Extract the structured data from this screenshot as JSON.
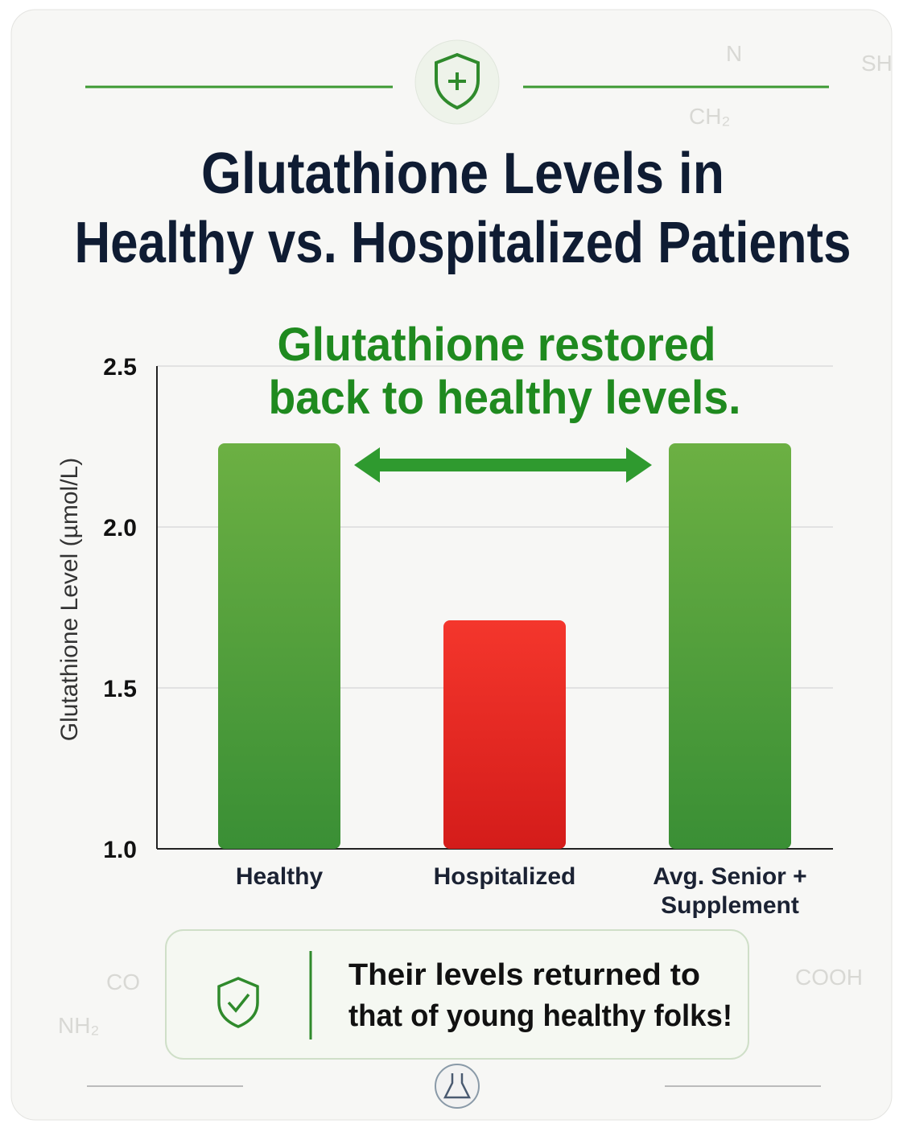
{
  "chart_data": {
    "type": "bar",
    "title": [
      "Glutathione Levels in",
      "Healthy vs. Hospitalized Patients"
    ],
    "annotation": [
      "Glutathione restored",
      "back to healthy levels."
    ],
    "callout": [
      "Their levels returned to",
      "that of young healthy folks!"
    ],
    "y_label": "Glutathione Level (µmol/L)",
    "categories": [
      "Healthy",
      "Hospitalized",
      "Avg. Senior + Supplement"
    ],
    "values": [
      2.26,
      1.71,
      2.26
    ],
    "colors": [
      "#4c9e3a",
      "#e8241f",
      "#4c9e3a"
    ],
    "ylim": [
      1.0,
      2.5
    ],
    "yticks": [
      {
        "value": 1.0,
        "label": "1.0"
      },
      1.5,
      {
        "value": 2.0,
        "label": "2.0"
      },
      2.5
    ],
    "grid": true,
    "background_labels": [
      "SH",
      "N",
      "CH₂",
      "COOH",
      "NH₂",
      "CO"
    ]
  }
}
